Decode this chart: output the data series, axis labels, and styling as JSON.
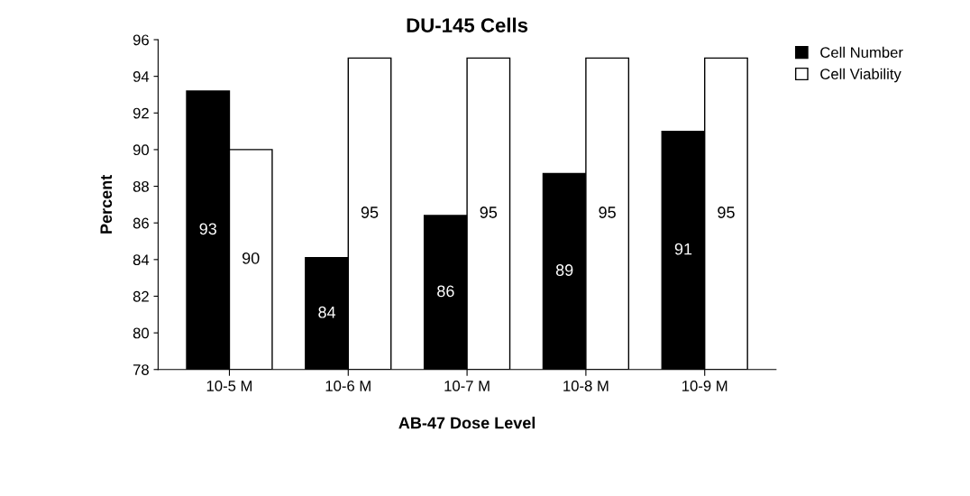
{
  "chart_data": {
    "type": "bar",
    "title": "DU-145 Cells",
    "xlabel": "AB-47 Dose Level",
    "ylabel": "Percent",
    "categories": [
      "10-5 M",
      "10-6 M",
      "10-7 M",
      "10-8 M",
      "10-9 M"
    ],
    "series": [
      {
        "name": "Cell Number",
        "color": "#000000",
        "values": [
          93.2,
          84.1,
          86.4,
          88.7,
          91.0
        ],
        "value_labels": [
          "93",
          "84",
          "86",
          "89",
          "91"
        ]
      },
      {
        "name": "Cell Viability",
        "color": "#ffffff",
        "values": [
          90,
          95,
          95,
          95,
          95
        ],
        "value_labels": [
          "90",
          "95",
          "95",
          "95",
          "95"
        ]
      }
    ],
    "ylim": [
      78,
      96
    ],
    "yticks": [
      78,
      80,
      82,
      84,
      86,
      88,
      90,
      92,
      94,
      96
    ],
    "grid": false,
    "legend": "top right"
  }
}
